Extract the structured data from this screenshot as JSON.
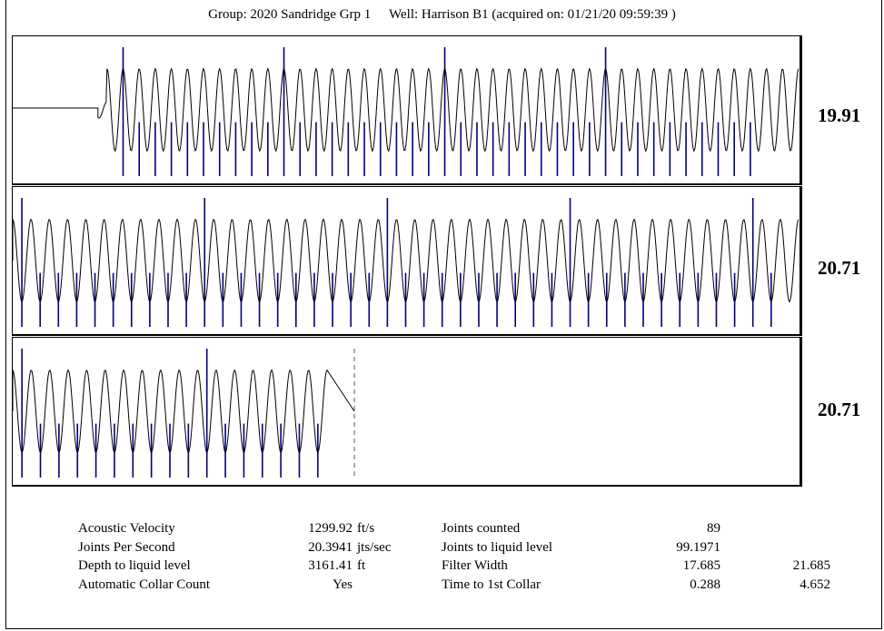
{
  "header": {
    "group": "Group: 2020 Sandridge Grp 1",
    "well": "Well: Harrison B1 (acquired on: 01/21/20 09:59:39 )"
  },
  "chart_data": {
    "type": "line",
    "series_color": "#000000",
    "marker_color": "#000080",
    "panels": [
      {
        "rate_label": "19.91",
        "signal_start": 0.12,
        "signal_end": 1.0,
        "cycles": 43,
        "markers": 40,
        "major_every": 10
      },
      {
        "rate_label": "20.71",
        "signal_start": 0.0,
        "signal_end": 1.0,
        "cycles": 43,
        "markers": 42,
        "major_every": 10
      },
      {
        "rate_label": "20.71",
        "signal_start": 0.0,
        "signal_end": 0.4,
        "cycles": 17,
        "markers": 17,
        "major_every": 10,
        "dashed_end": true
      }
    ]
  },
  "params": {
    "col1": [
      "Acoustic Velocity",
      "Joints Per Second",
      "Depth to liquid level",
      "Automatic Collar Count"
    ],
    "col2": [
      "1299.92",
      "20.3941",
      "3161.41",
      "Yes"
    ],
    "col3": [
      "ft/s",
      "jts/sec",
      "ft",
      ""
    ],
    "col4": [
      "Joints counted",
      "Joints to liquid level",
      "Filter Width",
      "Time to 1st Collar"
    ],
    "col5": [
      "89",
      "99.1971",
      "17.685",
      "0.288"
    ],
    "col6": [
      "",
      "",
      "21.685",
      "4.652"
    ]
  }
}
